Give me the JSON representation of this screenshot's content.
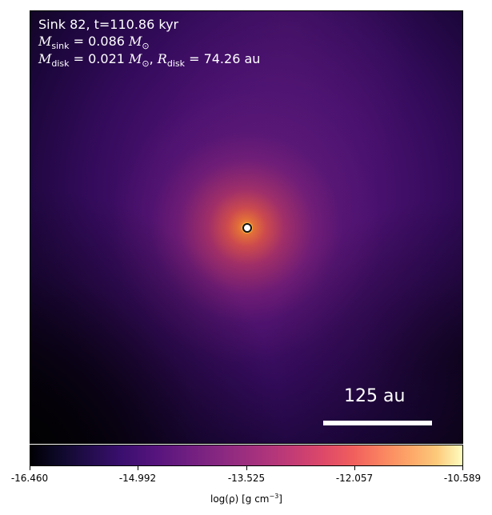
{
  "header": {
    "line1": "Sink 82, t=110.86 kyr",
    "sink_mass_label": "M",
    "sink_mass_sub": "sink",
    "sink_mass_value": "= 0.086",
    "sink_mass_unit": "M",
    "sink_mass_unit_sub": "⊙",
    "disk_mass_label": "M",
    "disk_mass_sub": "disk",
    "disk_mass_value": "= 0.021",
    "disk_mass_unit": "M",
    "disk_mass_unit_sub": "⊙",
    "disk_radius_label": "R",
    "disk_radius_sub": "disk",
    "disk_radius_value": "= 74.26 au"
  },
  "scale_bar": {
    "label": "125 au"
  },
  "colorbar": {
    "ticks": [
      "-16.460",
      "-14.992",
      "-13.525",
      "-12.057",
      "-10.589"
    ],
    "label_prefix": "log(ρ) [g cm",
    "label_exp": "−3",
    "label_suffix": "]"
  }
}
